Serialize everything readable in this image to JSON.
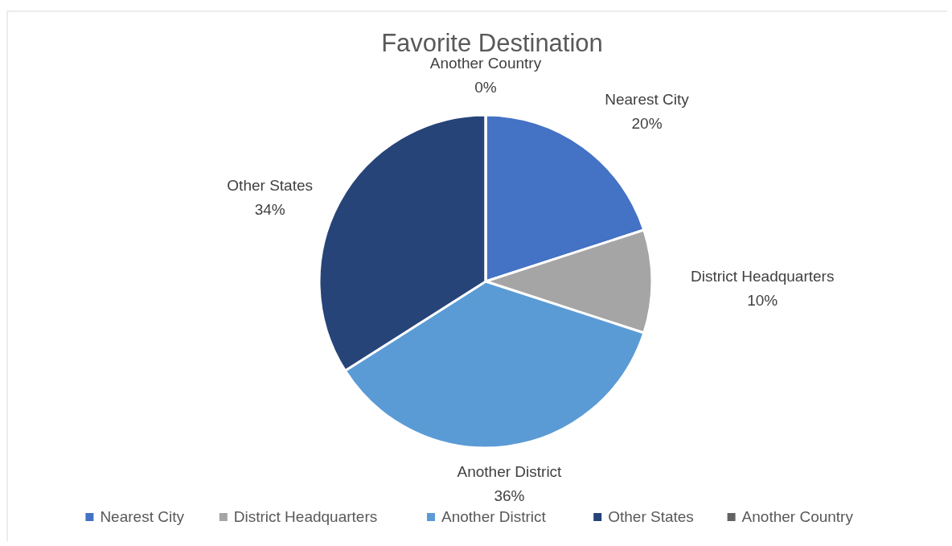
{
  "chart_data": {
    "type": "pie",
    "title": "Favorite Destination",
    "categories": [
      "Nearest City",
      "District Headquarters",
      "Another District",
      "Other States",
      "Another Country"
    ],
    "values": [
      20,
      10,
      36,
      34,
      0
    ],
    "colors": [
      "#4472c4",
      "#a5a5a5",
      "#5b9bd5",
      "#264478",
      "#636363"
    ],
    "value_labels": [
      "20%",
      "10%",
      "36%",
      "34%",
      "0%"
    ],
    "legend": "bottom"
  }
}
